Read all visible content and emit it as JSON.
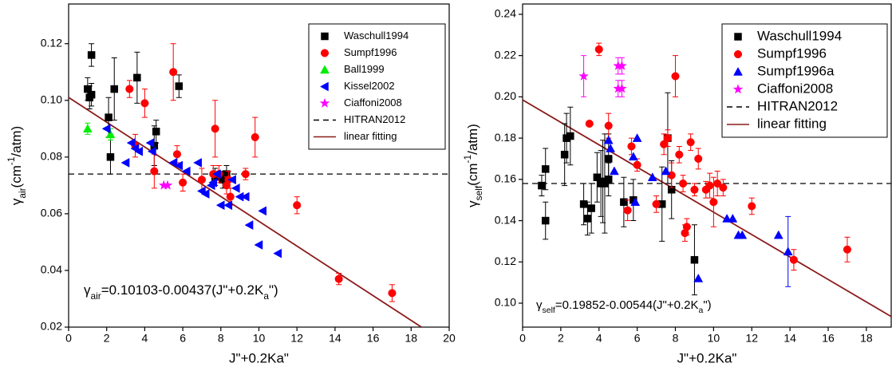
{
  "chart_data": [
    {
      "type": "scatter",
      "x_label": "J\"+0.2Ka\"",
      "y_label": [
        "γ",
        "air",
        "(cm",
        "-1",
        "/atm)"
      ],
      "annotation": [
        "γ",
        "air",
        "=0.10103-0.00437(J\"+0.2K",
        "a",
        "\")"
      ],
      "xlim": [
        0,
        20
      ],
      "ylim": [
        0.02,
        0.134
      ],
      "xticks": [
        0,
        2,
        4,
        6,
        8,
        10,
        12,
        14,
        16,
        18,
        20
      ],
      "yticks": [
        0.02,
        0.04,
        0.06,
        0.08,
        {
          "value": 0.1,
          "label": "0.10"
        },
        0.12
      ],
      "legend_loc": "upper right",
      "series": [
        {
          "name": "Waschull1994",
          "color": "#000000",
          "marker": "square",
          "x": [
            1.0,
            1.2,
            1.2,
            1.1,
            2.1,
            2.2,
            2.4,
            3.6,
            4.5,
            4.6,
            5.8,
            7.7,
            8.1,
            8.3
          ],
          "values": [
            0.104,
            0.116,
            0.102,
            0.101,
            0.094,
            0.08,
            0.104,
            0.108,
            0.084,
            0.089,
            0.105,
            0.073,
            0.072,
            0.074
          ],
          "errors": [
            0.004,
            0.004,
            0.004,
            0.004,
            0.007,
            0.006,
            0.011,
            0.009,
            0.007,
            0.004,
            0.004,
            0.003,
            0.003,
            0.003
          ]
        },
        {
          "name": "Sumpf1996",
          "color": "#ff0000",
          "marker": "circle",
          "x": [
            3.2,
            3.5,
            4.0,
            4.5,
            5.5,
            5.7,
            6.0,
            7.0,
            7.6,
            7.7,
            7.9,
            8.3,
            8.4,
            8.5,
            9.3,
            9.8,
            12.0,
            14.2,
            17.0
          ],
          "values": [
            0.104,
            0.084,
            0.099,
            0.075,
            0.11,
            0.081,
            0.071,
            0.072,
            0.074,
            0.09,
            0.074,
            0.07,
            0.072,
            0.066,
            0.074,
            0.087,
            0.063,
            0.037,
            0.032
          ],
          "errors": [
            0.003,
            0.004,
            0.005,
            0.006,
            0.01,
            0.003,
            0.003,
            0.004,
            0.003,
            0.01,
            0.003,
            0.003,
            0.003,
            0.003,
            0.002,
            0.007,
            0.003,
            0.002,
            0.003
          ]
        },
        {
          "name": "Ball1999",
          "color": "#00ee00",
          "marker": "triangle",
          "x": [
            1.0,
            2.2
          ],
          "values": [
            0.09,
            0.088
          ],
          "errors": [
            0.002,
            0.002
          ]
        },
        {
          "name": "Kissel2002",
          "color": "#0000ff",
          "marker": "triangle-left",
          "x": [
            2.0,
            3.0,
            3.3,
            3.5,
            3.7,
            4.3,
            4.4,
            5.5,
            5.8,
            6.2,
            6.8,
            7.0,
            7.2,
            7.5,
            7.6,
            7.8,
            8.0,
            8.4,
            8.6,
            8.8,
            9.0,
            9.3,
            9.5,
            10.0,
            10.2,
            11.0
          ],
          "values": [
            0.09,
            0.078,
            0.085,
            0.083,
            0.082,
            0.085,
            0.082,
            0.078,
            0.077,
            0.075,
            0.078,
            0.068,
            0.067,
            0.07,
            0.071,
            0.074,
            0.063,
            0.063,
            0.072,
            0.069,
            0.066,
            0.066,
            0.056,
            0.049,
            0.061,
            0.046
          ]
        },
        {
          "name": "Ciaffoni2008",
          "color": "#ff00ff",
          "marker": "star",
          "x": [
            5.0,
            5.2
          ],
          "values": [
            0.07,
            0.07
          ]
        }
      ],
      "reference_lines": [
        {
          "name": "HITRAN2012",
          "y": 0.074,
          "color": "#000000"
        }
      ],
      "fit": {
        "name": "linear fitting",
        "color": "#8b1a1a",
        "intercept": 0.10103,
        "slope": -0.00437
      }
    },
    {
      "type": "scatter",
      "x_label": "J\"+0.2Ka\"",
      "y_label": [
        "γ",
        "self",
        "(cm",
        "-1",
        "/atm)"
      ],
      "annotation": [
        "γ",
        "self",
        "=0.19852-0.00544(J\"+0.2K",
        "a",
        "\")"
      ],
      "xlim": [
        0,
        19.3
      ],
      "ylim": [
        0.0884,
        0.245
      ],
      "xticks": [
        0,
        2,
        4,
        6,
        8,
        10,
        12,
        14,
        16,
        18
      ],
      "yticks": [
        {
          "value": 0.1,
          "label": "0.10"
        },
        0.12,
        0.14,
        0.16,
        0.18,
        {
          "value": 0.2,
          "label": "0.20"
        },
        0.22,
        0.24
      ],
      "legend_loc": "upper right",
      "series": [
        {
          "name": "Waschull1994",
          "color": "#000000",
          "marker": "square",
          "x": [
            1.0,
            1.2,
            1.2,
            2.2,
            2.3,
            2.5,
            3.2,
            3.4,
            3.6,
            3.9,
            4.1,
            4.2,
            4.3,
            4.5,
            4.5,
            5.3,
            5.8,
            7.3,
            7.6,
            7.8,
            9.0
          ],
          "values": [
            0.157,
            0.165,
            0.14,
            0.172,
            0.18,
            0.181,
            0.148,
            0.141,
            0.146,
            0.161,
            0.158,
            0.159,
            0.158,
            0.16,
            0.17,
            0.149,
            0.15,
            0.148,
            0.18,
            0.155,
            0.121
          ],
          "errors": [
            0.005,
            0.01,
            0.009,
            0.015,
            0.012,
            0.014,
            0.01,
            0.008,
            0.012,
            0.012,
            0.016,
            0.02,
            0.024,
            0.008,
            0.012,
            0.012,
            0.01,
            0.018,
            0.022,
            0.014,
            0.017
          ]
        },
        {
          "name": "Sumpf1996",
          "color": "#ff0000",
          "marker": "circle",
          "x": [
            3.5,
            4.0,
            4.5,
            5.5,
            5.7,
            6.0,
            7.0,
            7.4,
            7.6,
            7.8,
            8.0,
            8.2,
            8.4,
            8.5,
            8.6,
            8.8,
            9.0,
            9.2,
            9.6,
            9.8,
            10.0,
            10.2,
            10.5,
            12.0,
            14.2,
            17.0
          ],
          "values": [
            0.187,
            0.223,
            0.186,
            0.145,
            0.176,
            0.167,
            0.148,
            0.177,
            0.18,
            0.162,
            0.21,
            0.172,
            0.158,
            0.134,
            0.137,
            0.178,
            0.155,
            0.17,
            0.155,
            0.157,
            0.149,
            0.158,
            0.156,
            0.147,
            0.121,
            0.126
          ],
          "errors": [
            null,
            0.003,
            0.006,
            0.005,
            0.004,
            0.003,
            0.004,
            0.005,
            0.004,
            0.006,
            0.01,
            0.004,
            0.004,
            0.004,
            0.004,
            0.004,
            0.003,
            0.005,
            0.004,
            0.006,
            0.012,
            0.006,
            0.004,
            0.004,
            0.005,
            0.006
          ]
        },
        {
          "name": "Sumpf1996a",
          "color": "#0000ff",
          "marker": "triangle",
          "x": [
            4.5,
            4.6,
            4.8,
            5.8,
            5.9,
            6.0,
            6.8,
            7.5,
            9.2,
            10.7,
            11.0,
            11.3,
            11.5,
            13.4,
            13.9
          ],
          "values": [
            0.179,
            0.175,
            0.164,
            0.171,
            0.149,
            0.18,
            0.161,
            0.164,
            0.112,
            0.141,
            0.141,
            0.133,
            0.133,
            0.133,
            0.125
          ],
          "errors": [
            null,
            null,
            null,
            null,
            null,
            null,
            null,
            null,
            null,
            null,
            null,
            null,
            null,
            null,
            0.017
          ]
        },
        {
          "name": "Ciaffoni2008",
          "color": "#ff00ff",
          "marker": "star",
          "x": [
            3.2,
            5.0,
            5.2,
            5.0,
            5.2
          ],
          "values": [
            0.21,
            0.215,
            0.215,
            0.204,
            0.204
          ],
          "errors": [
            0.01,
            0.004,
            0.004,
            0.004,
            0.004
          ]
        }
      ],
      "reference_lines": [
        {
          "name": "HITRAN2012",
          "y": 0.158,
          "color": "#000000"
        }
      ],
      "fit": {
        "name": "linear fitting",
        "color": "#8b1a1a",
        "intercept": 0.19852,
        "slope": -0.00544
      }
    }
  ]
}
